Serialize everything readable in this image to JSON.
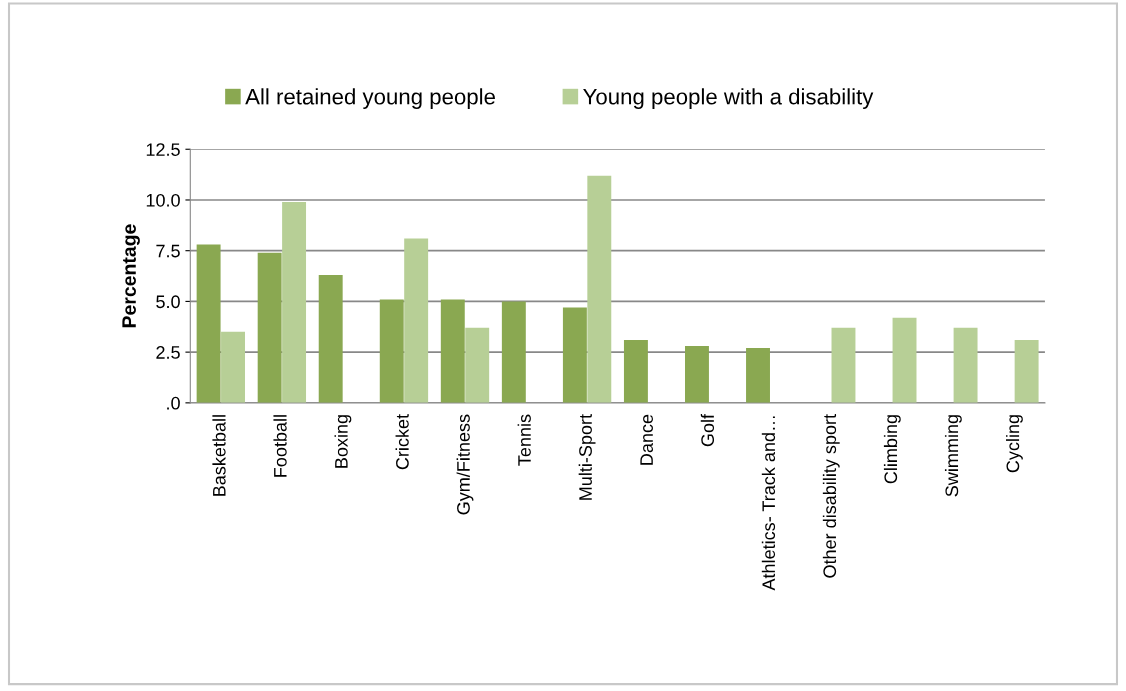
{
  "chart_data": {
    "type": "bar",
    "ylabel": "Percentage",
    "categories": [
      "Basketball",
      "Football",
      "Boxing",
      "Cricket",
      "Gym/Fitness",
      "Tennis",
      "Multi-Sport",
      "Dance",
      "Golf",
      "Athletics- Track and…",
      "Other disability sport",
      "Climbing",
      "Swimming",
      "Cycling"
    ],
    "series": [
      {
        "name": "All retained young people",
        "color": "#8aa851",
        "values": [
          7.8,
          7.4,
          6.3,
          5.1,
          5.1,
          5.0,
          4.7,
          3.1,
          2.8,
          2.7,
          null,
          null,
          null,
          null
        ]
      },
      {
        "name": "Young people with a disability",
        "color": "#b7cf96",
        "values": [
          3.5,
          9.9,
          null,
          8.1,
          3.7,
          null,
          11.2,
          null,
          null,
          null,
          3.7,
          4.2,
          3.7,
          3.1
        ]
      }
    ],
    "ylim": [
      0,
      12.5
    ],
    "yticks": [
      {
        "value": 0,
        "label": ".0"
      },
      {
        "value": 2.5,
        "label": "2.5"
      },
      {
        "value": 5,
        "label": "5.0"
      },
      {
        "value": 7.5,
        "label": "7.5"
      },
      {
        "value": 10,
        "label": "10.0"
      },
      {
        "value": 12.5,
        "label": "12.5"
      }
    ],
    "grid": "y",
    "legend": "top"
  }
}
